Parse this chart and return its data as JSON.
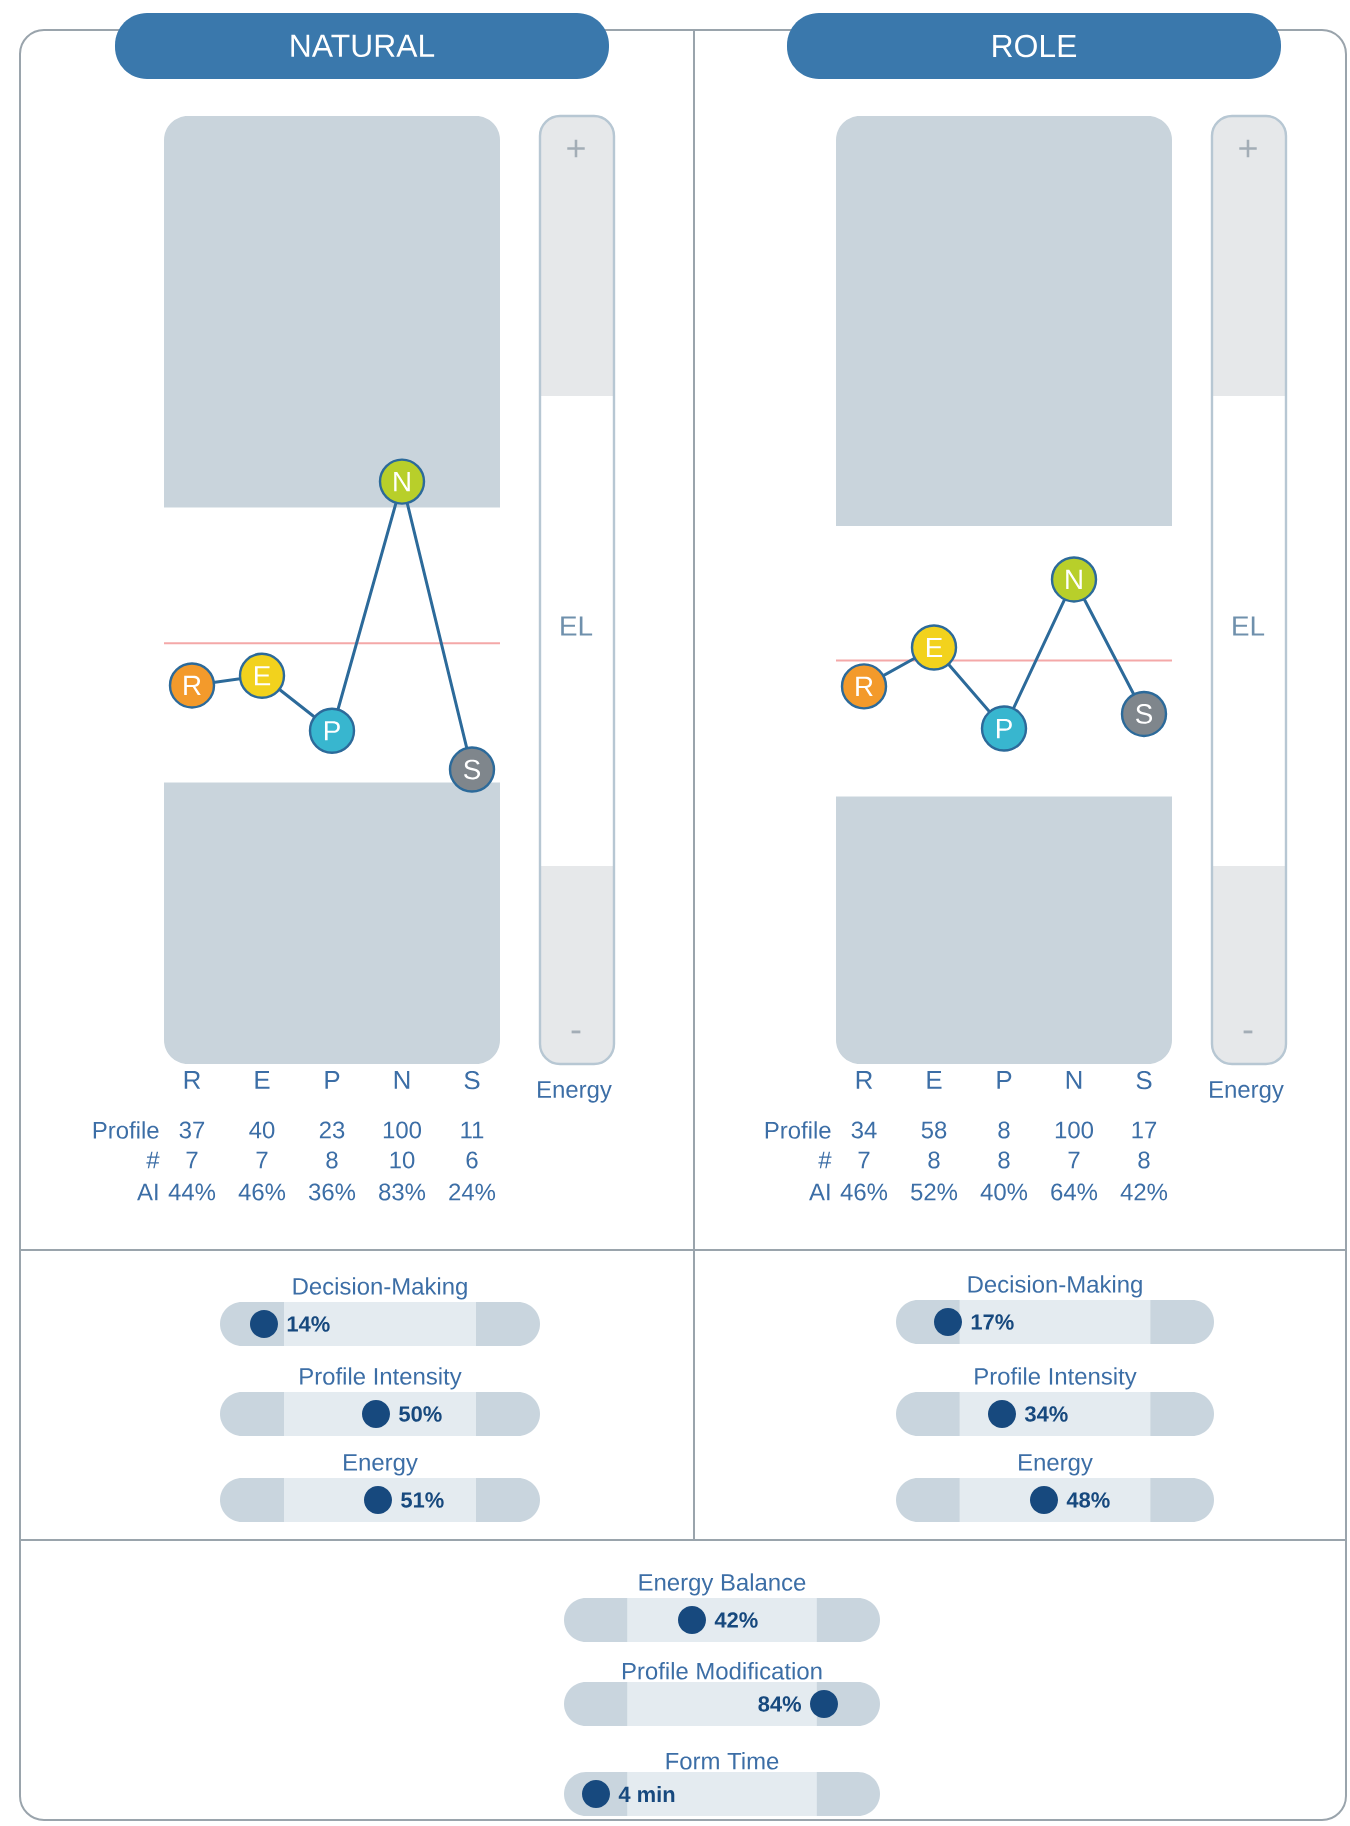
{
  "chart_data": [
    {
      "type": "line",
      "title": "NATURAL",
      "categories": [
        "R",
        "E",
        "P",
        "N",
        "S"
      ],
      "ylim": [
        -80,
        213
      ],
      "marker": "circle",
      "data_labels": true,
      "color": "#2c6a9a",
      "colors": [
        "#f39a2b",
        "#f2d21d",
        "#38b6cf",
        "#b8cf2a",
        "#7f868c"
      ],
      "values": [
        37,
        40,
        23,
        100,
        11
      ],
      "bands": [
        {
          "axis": "y",
          "from": 7,
          "to": 92,
          "color": "#ffffff"
        }
      ],
      "ref_lines": [
        {
          "axis": "y",
          "value": 50,
          "color": "#f4a8a8"
        }
      ],
      "annotations": [
        "+",
        "EL",
        "-",
        "Energy",
        "Profile",
        "#",
        "AI",
        "7",
        "7",
        "8",
        "10",
        "6",
        "44%",
        "46%",
        "36%",
        "83%",
        "24%"
      ]
    },
    {
      "type": "line",
      "title": "ROLE",
      "categories": [
        "R",
        "E",
        "P",
        "N",
        "S"
      ],
      "ylim": [
        -199,
        386
      ],
      "marker": "circle",
      "data_labels": true,
      "color": "#2c6a9a",
      "colors": [
        "#f39a2b",
        "#f2d21d",
        "#38b6cf",
        "#b8cf2a",
        "#7f868c"
      ],
      "values": [
        34,
        58,
        8,
        100,
        17
      ],
      "bands": [
        {
          "axis": "y",
          "from": -34,
          "to": 133,
          "color": "#ffffff"
        }
      ],
      "ref_lines": [
        {
          "axis": "y",
          "value": 50,
          "color": "#f4a8a8"
        }
      ],
      "annotations": [
        "+",
        "EL",
        "-",
        "Energy",
        "Profile",
        "#",
        "AI",
        "7",
        "8",
        "8",
        "7",
        "8",
        "46%",
        "52%",
        "40%",
        "64%",
        "42%"
      ]
    },
    {
      "type": "other",
      "title": "Decision-Making",
      "annotations": [
        "14%"
      ]
    },
    {
      "type": "other",
      "title": "Profile Intensity",
      "annotations": [
        "50%"
      ]
    },
    {
      "type": "other",
      "title": "Energy",
      "annotations": [
        "51%"
      ]
    },
    {
      "type": "other",
      "title": "Decision-Making",
      "annotations": [
        "17%"
      ]
    },
    {
      "type": "other",
      "title": "Profile Intensity",
      "annotations": [
        "34%"
      ]
    },
    {
      "type": "other",
      "title": "Energy",
      "annotations": [
        "48%"
      ]
    },
    {
      "type": "other",
      "title": "Energy Balance",
      "annotations": [
        "42%"
      ]
    },
    {
      "type": "other",
      "title": "Profile Modification",
      "annotations": [
        "84%"
      ]
    },
    {
      "type": "other",
      "title": "Form Time",
      "annotations": [
        "4 min"
      ]
    }
  ]
}
